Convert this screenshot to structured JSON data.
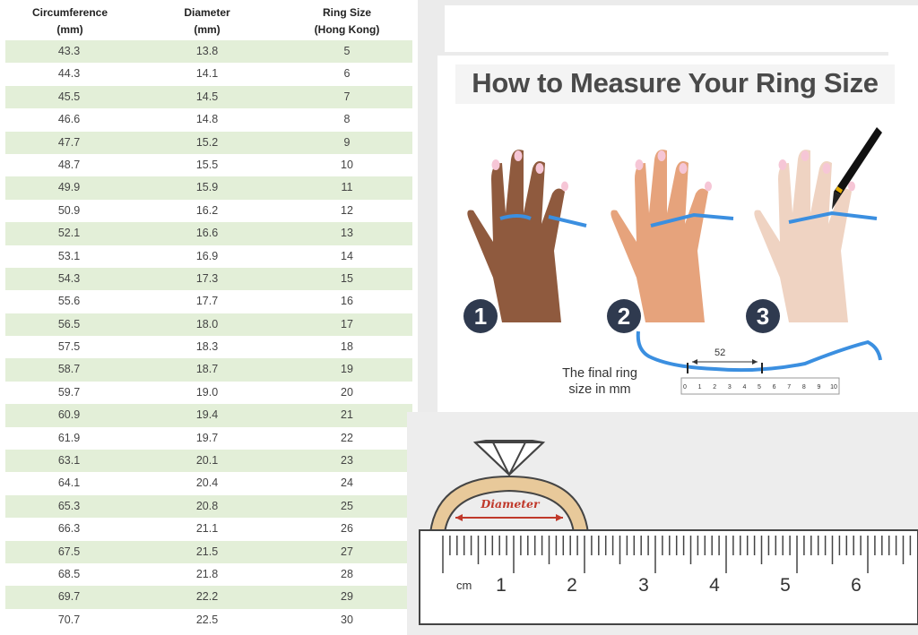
{
  "table": {
    "headers": [
      {
        "line1": "Circumference",
        "line2": "(mm)"
      },
      {
        "line1": "Diameter",
        "line2": "(mm)"
      },
      {
        "line1": "Ring Size",
        "line2": "(Hong Kong)"
      }
    ],
    "rows": [
      [
        "43.3",
        "13.8",
        "5"
      ],
      [
        "44.3",
        "14.1",
        "6"
      ],
      [
        "45.5",
        "14.5",
        "7"
      ],
      [
        "46.6",
        "14.8",
        "8"
      ],
      [
        "47.7",
        "15.2",
        "9"
      ],
      [
        "48.7",
        "15.5",
        "10"
      ],
      [
        "49.9",
        "15.9",
        "11"
      ],
      [
        "50.9",
        "16.2",
        "12"
      ],
      [
        "52.1",
        "16.6",
        "13"
      ],
      [
        "53.1",
        "16.9",
        "14"
      ],
      [
        "54.3",
        "17.3",
        "15"
      ],
      [
        "55.6",
        "17.7",
        "16"
      ],
      [
        "56.5",
        "18.0",
        "17"
      ],
      [
        "57.5",
        "18.3",
        "18"
      ],
      [
        "58.7",
        "18.7",
        "19"
      ],
      [
        "59.7",
        "19.0",
        "20"
      ],
      [
        "60.9",
        "19.4",
        "21"
      ],
      [
        "61.9",
        "19.7",
        "22"
      ],
      [
        "63.1",
        "20.1",
        "23"
      ],
      [
        "64.1",
        "20.4",
        "24"
      ],
      [
        "65.3",
        "20.8",
        "25"
      ],
      [
        "66.3",
        "21.1",
        "26"
      ],
      [
        "67.5",
        "21.5",
        "27"
      ],
      [
        "68.5",
        "21.8",
        "28"
      ],
      [
        "69.7",
        "22.2",
        "29"
      ],
      [
        "70.7",
        "22.5",
        "30"
      ]
    ]
  },
  "infographic": {
    "title": "How to Measure Your Ring Size",
    "steps": [
      "1",
      "2",
      "3"
    ],
    "caption_line1": "The final ring",
    "caption_line2": "size in mm",
    "measure_value": "52",
    "small_ruler_numbers": [
      "0",
      "1",
      "2",
      "3",
      "4",
      "5",
      "6",
      "7",
      "8",
      "9",
      "10"
    ]
  },
  "ring_diagram": {
    "diameter_label": "Diameter",
    "ruler_unit": "cm",
    "ruler_numbers": [
      "1",
      "2",
      "3",
      "4",
      "5",
      "6"
    ]
  },
  "colors": {
    "table_stripe": "#e3efd8",
    "band_blue": "#3b8fe0",
    "step_circle": "#2f3a4f",
    "diameter_red": "#c0392b",
    "ring_gold": "#e8c99a"
  }
}
